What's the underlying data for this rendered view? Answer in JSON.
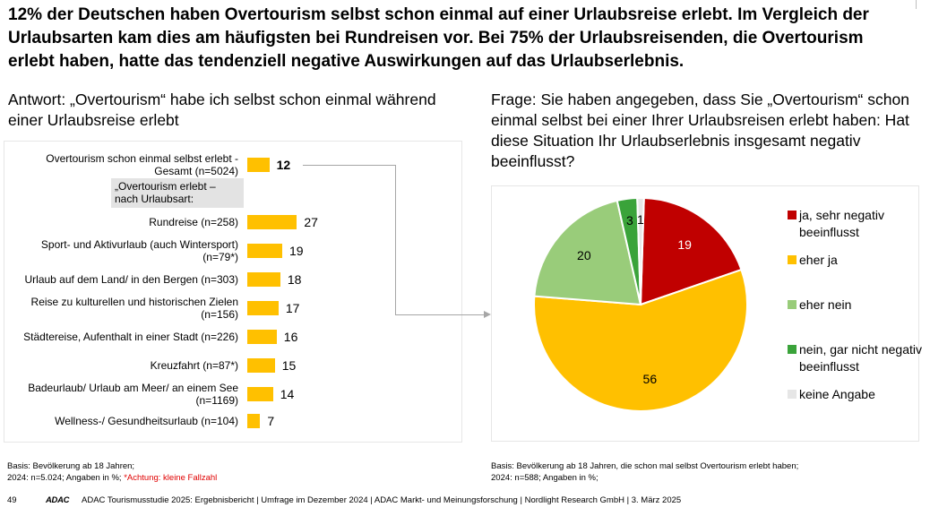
{
  "headline": "12% der Deutschen haben Overtourism selbst schon einmal auf einer Urlaubsreise erlebt. Im Vergleich der Urlaubsarten kam dies am häufigsten bei Rundreisen vor. Bei 75% der Urlaubsreisenden, die Overtourism erlebt haben, hatte das tendenziell negative Auswirkungen auf das Urlaubserlebnis.",
  "left_title": "Antwort: „Overtourism“ habe ich selbst schon einmal während einer Urlaubsreise erlebt",
  "right_title": "Frage: Sie haben angegeben, dass Sie „Overtourism“ schon einmal selbst bei einer Ihrer Urlaubsreisen erlebt haben: Hat diese Situation Ihr Urlaubserlebnis insgesamt negativ beeinflusst?",
  "group_label": "„Overtourism erlebt – nach Urlaubsart:",
  "colors": {
    "bar": "#ffc000",
    "ja_sehr_negativ": "#c00000",
    "eher_ja": "#ffc000",
    "eher_nein": "#99cc7a",
    "nein_gar_nicht": "#3aa33a",
    "keine_angabe": "#e6e6e6"
  },
  "chart_data": [
    {
      "type": "bar",
      "orientation": "horizontal",
      "unit": "%",
      "categories": [
        "Overtourism schon einmal selbst erlebt - Gesamt (n=5024)",
        "Rundreise (n=258)",
        "Sport- und Aktivurlaub (auch Wintersport) (n=79*)",
        "Urlaub auf dem Land/ in den Bergen (n=303)",
        "Reise zu kulturellen und historischen Zielen  (n=156)",
        "Städtereise, Aufenthalt in einer Stadt (n=226)",
        "Kreuzfahrt (n=87*)",
        "Badeurlaub/ Urlaub am Meer/ an einem See (n=1169)",
        "Wellness-/ Gesundheitsurlaub (n=104)"
      ],
      "values": [
        12,
        27,
        19,
        18,
        17,
        16,
        15,
        14,
        7
      ],
      "value_labels": [
        "12",
        "27",
        "19",
        "18",
        "17",
        "16",
        "15",
        "14",
        "7"
      ],
      "xlim": [
        0,
        100
      ],
      "grid": false
    },
    {
      "type": "pie",
      "unit": "%",
      "slices": [
        {
          "label": "ja, sehr negativ beeinflusst",
          "value": 19,
          "value_label": "19"
        },
        {
          "label": "eher ja",
          "value": 56,
          "value_label": "56"
        },
        {
          "label": "eher nein",
          "value": 20,
          "value_label": "20"
        },
        {
          "label": "nein, gar nicht negativ beeinflusst",
          "value": 3,
          "value_label": "3"
        },
        {
          "label": "keine Angabe",
          "value": 1,
          "value_label": "1"
        }
      ],
      "legend": [
        "ja, sehr negativ beeinflusst",
        "eher ja",
        "eher nein",
        "nein, gar nicht negativ beeinflusst",
        "keine Angabe"
      ],
      "legend_position": "right"
    }
  ],
  "basis_left_line1": "Basis: Bevölkerung ab 18 Jahren;",
  "basis_left_line2": "2024: n=5.024; Angaben in %; ",
  "basis_left_warning": "*Achtung: kleine Fallzahl",
  "basis_right_line1": "Basis: Bevölkerung ab 18 Jahren, die schon mal selbst Overtourism erlebt haben;",
  "basis_right_line2": "2024: n=588; Angaben in %;",
  "page_number": "49",
  "logo_text": "ADAC",
  "footer_text": "ADAC Tourismusstudie 2025: Ergebnisbericht | Umfrage im Dezember 2024 | ADAC Markt- und Meinungsforschung | Nordlight Research GmbH | 3. März 2025"
}
